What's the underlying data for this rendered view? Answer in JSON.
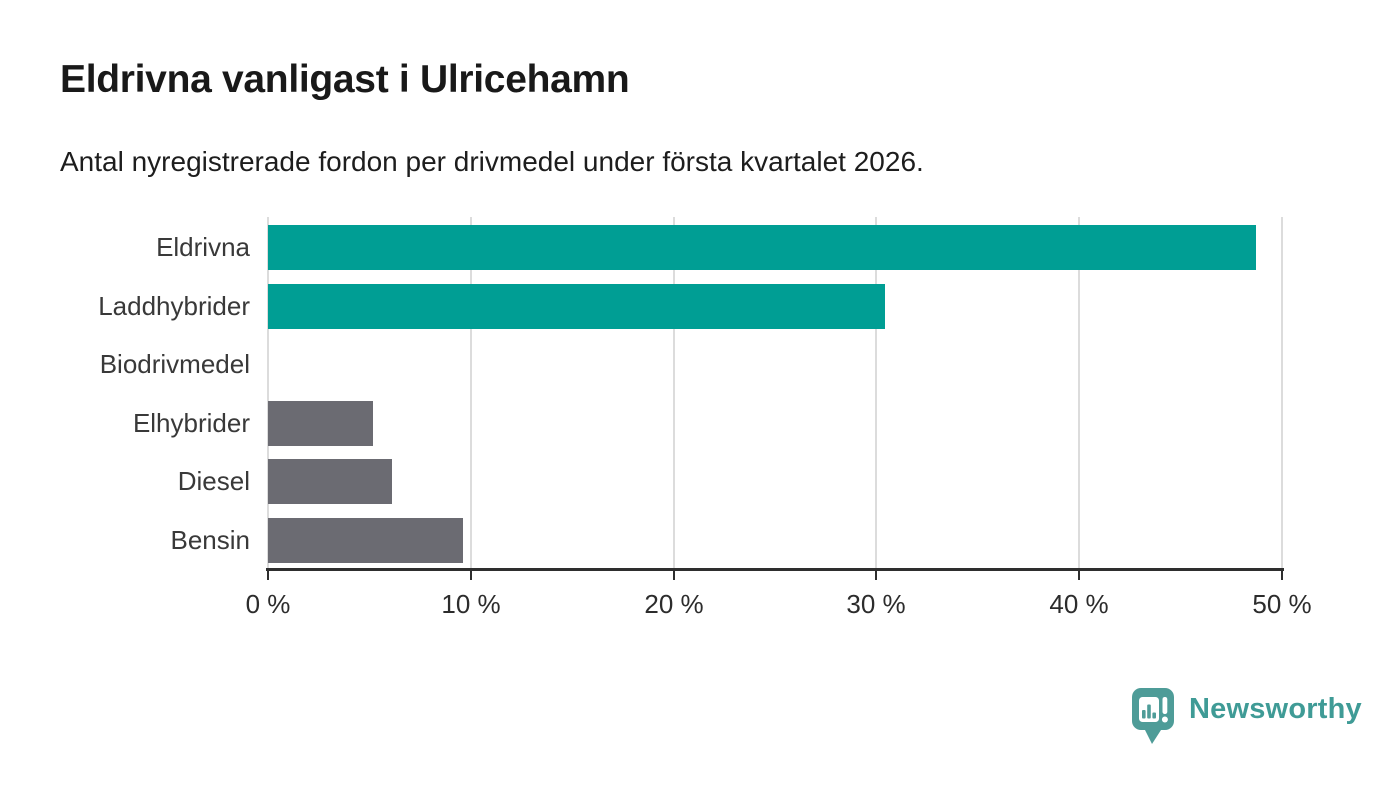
{
  "header": {
    "title": "Eldrivna vanligast i Ulricehamn",
    "subtitle": "Antal nyregistrerade fordon per drivmedel under första kvartalet 2026."
  },
  "chart_data": {
    "type": "bar",
    "orientation": "horizontal",
    "title": "Eldrivna vanligast i Ulricehamn",
    "subtitle": "Antal nyregistrerade fordon per drivmedel under första kvartalet 2026.",
    "categories": [
      "Eldrivna",
      "Laddhybrider",
      "Biodrivmedel",
      "Elhybrider",
      "Diesel",
      "Bensin"
    ],
    "values": [
      48.7,
      30.4,
      0,
      5.2,
      6.1,
      9.6
    ],
    "unit": "%",
    "xlim": [
      0,
      50
    ],
    "x_ticks": [
      {
        "value": 0,
        "label": "0 %"
      },
      {
        "value": 10,
        "label": "10 %"
      },
      {
        "value": 20,
        "label": "20 %"
      },
      {
        "value": 30,
        "label": "30 %"
      },
      {
        "value": 40,
        "label": "40 %"
      },
      {
        "value": 50,
        "label": "50 %"
      }
    ],
    "bar_colors": [
      "#009e94",
      "#009e94",
      "#6b6b72",
      "#6b6b72",
      "#6b6b72",
      "#6b6b72"
    ],
    "grid": "vertical",
    "legend": "none",
    "colors": {
      "highlight": "#009e94",
      "default": "#6b6b72",
      "gridline": "#dcdcdc",
      "axis": "#2e2e2e"
    }
  },
  "branding": {
    "name": "Newsworthy",
    "logo_icon": "newsworthy-bar-chart-pin-icon",
    "logo_color": "#4e9c98",
    "text_color": "#3f9b96"
  }
}
